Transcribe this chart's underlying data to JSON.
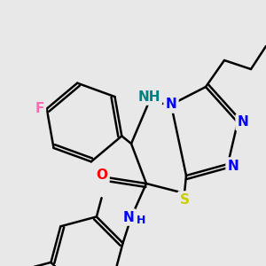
{
  "bg_color": "#e8e8e8",
  "atom_colors": {
    "F": "#ff69b4",
    "O": "#ff0000",
    "N": "#0000ff",
    "NH": "#008080",
    "S": "#cccc00",
    "C": "#000000",
    "H": "#0000ff"
  },
  "bond_color": "#000000",
  "bond_width": 1.8,
  "font_size_atom": 11,
  "font_size_small": 9
}
